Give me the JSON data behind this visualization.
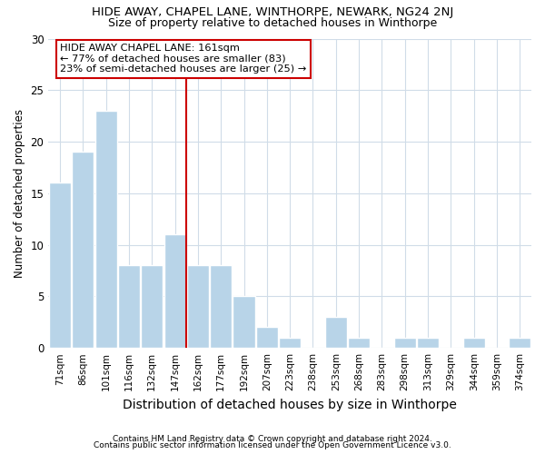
{
  "title": "HIDE AWAY, CHAPEL LANE, WINTHORPE, NEWARK, NG24 2NJ",
  "subtitle": "Size of property relative to detached houses in Winthorpe",
  "xlabel": "Distribution of detached houses by size in Winthorpe",
  "ylabel": "Number of detached properties",
  "bar_labels": [
    "71sqm",
    "86sqm",
    "101sqm",
    "116sqm",
    "132sqm",
    "147sqm",
    "162sqm",
    "177sqm",
    "192sqm",
    "207sqm",
    "223sqm",
    "238sqm",
    "253sqm",
    "268sqm",
    "283sqm",
    "298sqm",
    "313sqm",
    "329sqm",
    "344sqm",
    "359sqm",
    "374sqm"
  ],
  "bar_values": [
    16,
    19,
    23,
    8,
    8,
    11,
    8,
    8,
    5,
    2,
    1,
    0,
    3,
    1,
    0,
    1,
    1,
    0,
    1,
    0,
    1
  ],
  "bar_color": "#b8d4e8",
  "bar_edgecolor": "#ffffff",
  "vline_x": 5.5,
  "vline_color": "#cc0000",
  "ylim": [
    0,
    30
  ],
  "yticks": [
    0,
    5,
    10,
    15,
    20,
    25,
    30
  ],
  "annotation_text": "HIDE AWAY CHAPEL LANE: 161sqm\n← 77% of detached houses are smaller (83)\n23% of semi-detached houses are larger (25) →",
  "annotation_box_color": "#ffffff",
  "annotation_box_edgecolor": "#cc0000",
  "footnote1": "Contains HM Land Registry data © Crown copyright and database right 2024.",
  "footnote2": "Contains public sector information licensed under the Open Government Licence v3.0.",
  "background_color": "#ffffff",
  "grid_color": "#d0dce8",
  "title_fontsize": 9.5,
  "subtitle_fontsize": 9,
  "xlabel_fontsize": 10,
  "ylabel_fontsize": 8.5
}
